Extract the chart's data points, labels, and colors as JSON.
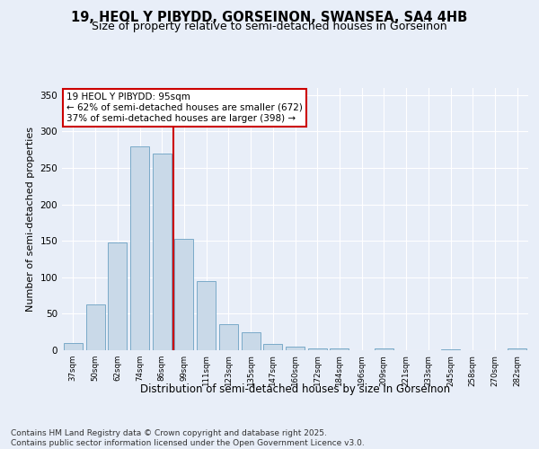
{
  "title1": "19, HEOL Y PIBYDD, GORSEINON, SWANSEA, SA4 4HB",
  "title2": "Size of property relative to semi-detached houses in Gorseinon",
  "xlabel": "Distribution of semi-detached houses by size in Gorseinon",
  "ylabel": "Number of semi-detached properties",
  "categories": [
    "37sqm",
    "50sqm",
    "62sqm",
    "74sqm",
    "86sqm",
    "99sqm",
    "111sqm",
    "123sqm",
    "135sqm",
    "147sqm",
    "160sqm",
    "172sqm",
    "184sqm",
    "196sqm",
    "209sqm",
    "221sqm",
    "233sqm",
    "245sqm",
    "258sqm",
    "270sqm",
    "282sqm"
  ],
  "values": [
    10,
    63,
    148,
    280,
    270,
    153,
    95,
    36,
    25,
    9,
    5,
    3,
    2,
    0,
    2,
    0,
    0,
    1,
    0,
    0,
    2
  ],
  "bar_color": "#c9d9e8",
  "bar_edge_color": "#7aaac8",
  "vline_x_index": 4.5,
  "vline_color": "#cc0000",
  "annotation_text": "19 HEOL Y PIBYDD: 95sqm\n← 62% of semi-detached houses are smaller (672)\n37% of semi-detached houses are larger (398) →",
  "annotation_box_color": "#ffffff",
  "annotation_box_edge_color": "#cc0000",
  "ylim": [
    0,
    360
  ],
  "yticks": [
    0,
    50,
    100,
    150,
    200,
    250,
    300,
    350
  ],
  "footer": "Contains HM Land Registry data © Crown copyright and database right 2025.\nContains public sector information licensed under the Open Government Licence v3.0.",
  "background_color": "#e8eef8",
  "plot_bg_color": "#e8eef8",
  "title1_fontsize": 10.5,
  "title2_fontsize": 9,
  "xlabel_fontsize": 8.5,
  "ylabel_fontsize": 8,
  "footer_fontsize": 6.5,
  "annotation_fontsize": 7.5
}
